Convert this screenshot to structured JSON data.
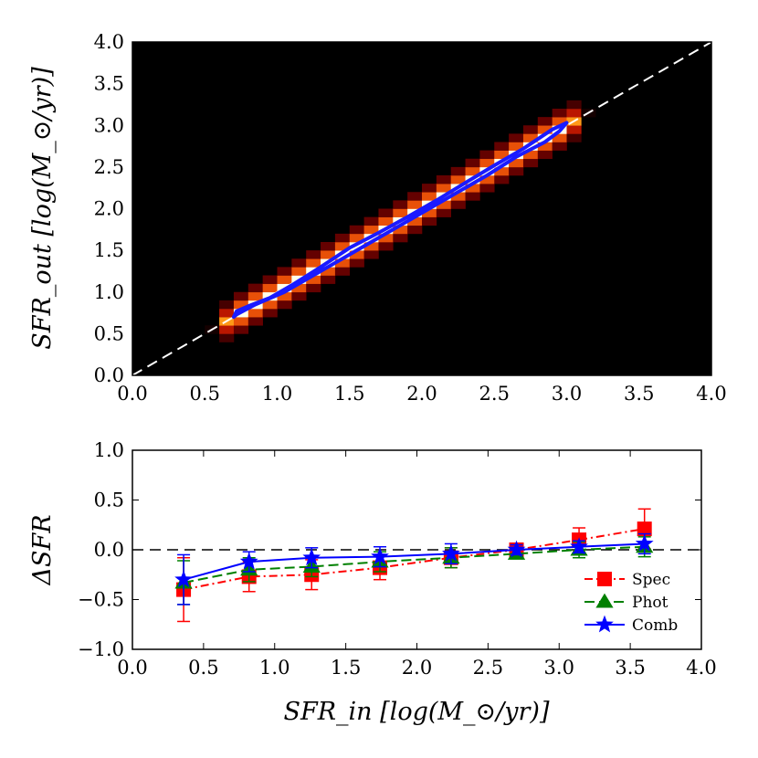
{
  "chart_data": [
    {
      "type": "heatmap",
      "title": "",
      "ylabel": "SFR_out [log(M_⊙/yr)]",
      "xlabel": "",
      "xlim": [
        0.0,
        4.0
      ],
      "ylim": [
        0.0,
        4.0
      ],
      "xticks": [
        "0.0",
        "0.5",
        "1.0",
        "1.5",
        "2.0",
        "2.5",
        "3.0",
        "3.5",
        "4.0"
      ],
      "yticks": [
        "0.0",
        "0.5",
        "1.0",
        "1.5",
        "2.0",
        "2.5",
        "3.0",
        "3.5",
        "4.0"
      ],
      "bins": 40,
      "density_ridge": {
        "x_start": 0.7,
        "x_end": 3.0,
        "slope": 1.0,
        "scatter": 0.08
      },
      "contour": [
        [
          0.7,
          0.7
        ],
        [
          0.72,
          0.77
        ],
        [
          0.8,
          0.83
        ],
        [
          0.95,
          0.93
        ],
        [
          1.1,
          1.08
        ],
        [
          1.3,
          1.3
        ],
        [
          1.5,
          1.53
        ],
        [
          1.7,
          1.71
        ],
        [
          1.9,
          1.9
        ],
        [
          2.1,
          2.1
        ],
        [
          2.3,
          2.31
        ],
        [
          2.5,
          2.52
        ],
        [
          2.7,
          2.72
        ],
        [
          2.9,
          2.95
        ],
        [
          3.0,
          3.03
        ],
        [
          2.95,
          2.93
        ],
        [
          2.85,
          2.8
        ],
        [
          2.65,
          2.62
        ],
        [
          2.45,
          2.4
        ],
        [
          2.25,
          2.2
        ],
        [
          2.05,
          2.0
        ],
        [
          1.85,
          1.8
        ],
        [
          1.65,
          1.6
        ],
        [
          1.45,
          1.4
        ],
        [
          1.25,
          1.2
        ],
        [
          1.05,
          1.0
        ],
        [
          0.85,
          0.85
        ],
        [
          0.72,
          0.73
        ]
      ],
      "reference_line": "y = x",
      "colors": {
        "background": "#000000",
        "contour": "#1a1aff",
        "reference": "#ffffff"
      }
    },
    {
      "type": "line",
      "title": "",
      "xlabel": "SFR_in [log(M_⊙/yr)]",
      "ylabel": "ΔSFR",
      "xlim": [
        0.0,
        4.0
      ],
      "ylim": [
        -1.0,
        1.0
      ],
      "xticks": [
        "0.0",
        "0.5",
        "1.0",
        "1.5",
        "2.0",
        "2.5",
        "3.0",
        "3.5",
        "4.0"
      ],
      "yticks": [
        "−1.0",
        "−0.5",
        "0.0",
        "0.5",
        "1.0"
      ],
      "x": [
        0.36,
        0.82,
        1.26,
        1.74,
        2.24,
        2.7,
        3.14,
        3.6
      ],
      "reference_line": "y = 0",
      "legend_position": "lower-right",
      "series": [
        {
          "name": "Spec",
          "color": "#ff0000",
          "marker": "square",
          "linestyle": "dashdot",
          "values": [
            -0.4,
            -0.27,
            -0.25,
            -0.18,
            -0.08,
            0.0,
            0.1,
            0.21
          ],
          "errors": [
            0.32,
            0.15,
            0.15,
            0.12,
            0.1,
            0.06,
            0.12,
            0.2
          ]
        },
        {
          "name": "Phot",
          "color": "#008000",
          "marker": "triangle",
          "linestyle": "dashed",
          "values": [
            -0.33,
            -0.2,
            -0.17,
            -0.12,
            -0.08,
            -0.04,
            0.0,
            0.03
          ],
          "errors": [
            0.22,
            0.12,
            0.1,
            0.1,
            0.1,
            0.05,
            0.08,
            0.1
          ]
        },
        {
          "name": "Comb",
          "color": "#0000ff",
          "marker": "star",
          "linestyle": "solid",
          "values": [
            -0.3,
            -0.12,
            -0.08,
            -0.07,
            -0.04,
            0.0,
            0.03,
            0.06
          ],
          "errors": [
            0.25,
            0.1,
            0.1,
            0.1,
            0.1,
            0.05,
            0.06,
            0.1
          ]
        }
      ]
    }
  ]
}
